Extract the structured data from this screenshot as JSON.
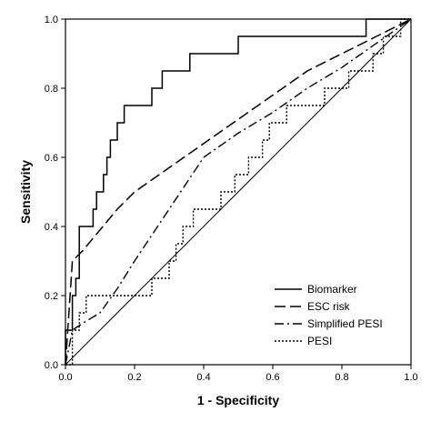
{
  "chart_data": {
    "type": "line",
    "title": "",
    "xlabel": "1 - Specificity",
    "ylabel": "Sensitivity",
    "xlim": [
      0,
      1
    ],
    "ylim": [
      0,
      1
    ],
    "x_ticks": [
      "0.0",
      "0.2",
      "0.4",
      "0.6",
      "0.8",
      "1.0"
    ],
    "y_ticks": [
      "0.0",
      "0.2",
      "0.4",
      "0.6",
      "0.8",
      "1.0"
    ],
    "grid": false,
    "legend_position": "bottom-right",
    "line_color": "#000000",
    "series": [
      {
        "name": "Biomarker",
        "style": "solid",
        "x": [
          0,
          0,
          0.02,
          0.02,
          0.03,
          0.03,
          0.04,
          0.04,
          0.08,
          0.08,
          0.09,
          0.09,
          0.11,
          0.11,
          0.12,
          0.12,
          0.13,
          0.13,
          0.15,
          0.15,
          0.17,
          0.17,
          0.2,
          0.2,
          0.25,
          0.25,
          0.28,
          0.28,
          0.36,
          0.36,
          0.5,
          0.5,
          0.64,
          0.64,
          0.87,
          0.87,
          1.0
        ],
        "y": [
          0,
          0.1,
          0.1,
          0.2,
          0.2,
          0.25,
          0.25,
          0.4,
          0.4,
          0.45,
          0.45,
          0.5,
          0.5,
          0.55,
          0.55,
          0.6,
          0.6,
          0.65,
          0.65,
          0.7,
          0.7,
          0.75,
          0.75,
          0.75,
          0.75,
          0.8,
          0.8,
          0.85,
          0.85,
          0.9,
          0.9,
          0.95,
          0.95,
          0.95,
          0.95,
          1.0,
          1.0
        ]
      },
      {
        "name": "ESC risk",
        "style": "dashed",
        "x": [
          0,
          0.01,
          0.02,
          0.05,
          0.1,
          0.15,
          0.2,
          0.3,
          0.4,
          0.5,
          0.6,
          0.7,
          0.8,
          0.9,
          1.0
        ],
        "y": [
          0,
          0.15,
          0.3,
          0.33,
          0.39,
          0.45,
          0.5,
          0.57,
          0.64,
          0.71,
          0.78,
          0.85,
          0.9,
          0.95,
          1.0
        ]
      },
      {
        "name": "Simplified PESI",
        "style": "dash-dot",
        "x": [
          0,
          0.02,
          0.05,
          0.1,
          0.15,
          0.2,
          0.3,
          0.4,
          0.5,
          0.6,
          0.7,
          0.8,
          0.9,
          1.0
        ],
        "y": [
          0,
          0.1,
          0.12,
          0.15,
          0.22,
          0.3,
          0.45,
          0.6,
          0.67,
          0.73,
          0.8,
          0.86,
          0.93,
          1.0
        ]
      },
      {
        "name": "PESI",
        "style": "dotted",
        "x": [
          0,
          0.02,
          0.02,
          0.04,
          0.04,
          0.06,
          0.06,
          0.13,
          0.13,
          0.25,
          0.25,
          0.3,
          0.3,
          0.32,
          0.32,
          0.34,
          0.34,
          0.37,
          0.37,
          0.45,
          0.45,
          0.49,
          0.49,
          0.53,
          0.53,
          0.57,
          0.57,
          0.59,
          0.59,
          0.64,
          0.64,
          0.66,
          0.66,
          0.75,
          0.75,
          0.82,
          0.82,
          0.89,
          0.89,
          0.92,
          0.92,
          0.95,
          0.95,
          0.97,
          0.97,
          1.0
        ],
        "y": [
          0,
          0,
          0.1,
          0.1,
          0.15,
          0.15,
          0.2,
          0.2,
          0.2,
          0.2,
          0.25,
          0.25,
          0.3,
          0.3,
          0.35,
          0.35,
          0.4,
          0.4,
          0.45,
          0.45,
          0.5,
          0.5,
          0.55,
          0.55,
          0.6,
          0.6,
          0.65,
          0.65,
          0.7,
          0.7,
          0.75,
          0.75,
          0.75,
          0.75,
          0.8,
          0.8,
          0.85,
          0.85,
          0.9,
          0.9,
          0.95,
          0.95,
          0.95,
          0.95,
          1.0,
          1.0
        ]
      },
      {
        "name": "",
        "style": "reference",
        "x": [
          0,
          1
        ],
        "y": [
          0,
          1
        ]
      }
    ]
  }
}
